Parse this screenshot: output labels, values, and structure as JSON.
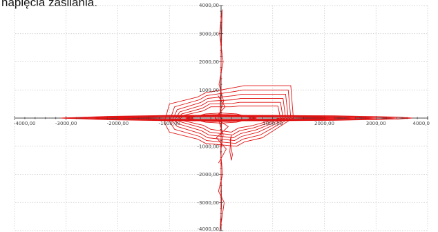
{
  "page_title": "napięcia zasilania.",
  "colors": {
    "curve": "#e01010",
    "grid": "#c8c8c8",
    "axis": "#111111"
  },
  "chart_data": {
    "type": "line",
    "title": "",
    "xlabel": "",
    "ylabel": "",
    "xlim": [
      -4000,
      4000
    ],
    "ylim": [
      -4000,
      4000
    ],
    "grid": true,
    "x_ticks": [
      -4000,
      -3000,
      -2000,
      -1000,
      0,
      1000,
      2000,
      3000,
      4000
    ],
    "y_ticks": [
      -4000,
      -3000,
      -2000,
      -1000,
      0,
      1000,
      2000,
      3000,
      4000
    ],
    "x_tick_labels": [
      "-4000,00",
      "-3000,00",
      "-2000,00",
      "-1000,00",
      "1000,00",
      "2000,00",
      "3000,00",
      "4000,0"
    ],
    "y_tick_labels": [
      "4000,00",
      "3000,00",
      "2000,00",
      "1000,00",
      "-1000,00",
      "-2000,00",
      "-3000,00",
      "-4000,00"
    ],
    "x_tick_label_values": [
      -4000,
      -3000,
      -2000,
      -1000,
      1000,
      2000,
      3000,
      4000
    ],
    "y_tick_label_values": [
      4000,
      3000,
      2000,
      1000,
      -1000,
      -2000,
      -3000,
      -4000
    ],
    "series": [
      {
        "x": [
          -3100,
          -2200,
          -1000,
          0,
          1000,
          2200,
          3400,
          3700,
          3400,
          2200,
          1000,
          0,
          -1000,
          -2200,
          -3100
        ],
        "y": [
          0,
          60,
          95,
          100,
          95,
          80,
          40,
          0,
          -40,
          -80,
          -95,
          -100,
          -95,
          -60,
          0
        ]
      },
      {
        "x": [
          -3100,
          -2200,
          -1000,
          0,
          1000,
          2200,
          3100,
          3400,
          3100,
          2200,
          1000,
          0,
          -1000,
          -2200,
          -3100
        ],
        "y": [
          0,
          45,
          80,
          85,
          80,
          65,
          30,
          0,
          -30,
          -65,
          -80,
          -85,
          -80,
          -45,
          0
        ]
      },
      {
        "x": [
          -2700,
          -1900,
          -900,
          0,
          900,
          1900,
          2700,
          3000,
          2700,
          1900,
          900,
          0,
          -900,
          -1900,
          -2700
        ],
        "y": [
          0,
          40,
          65,
          70,
          65,
          50,
          25,
          0,
          -25,
          -50,
          -65,
          -70,
          -65,
          -40,
          0
        ]
      },
      {
        "x": [
          -2400,
          -1700,
          -800,
          0,
          800,
          1700,
          2400,
          2600,
          2400,
          1700,
          800,
          0,
          -800,
          -1700,
          -2400
        ],
        "y": [
          0,
          30,
          50,
          55,
          50,
          40,
          20,
          0,
          -20,
          -40,
          -50,
          -55,
          -50,
          -30,
          0
        ]
      },
      {
        "x": [
          -2000,
          -1400,
          -700,
          0,
          700,
          1400,
          2000,
          2200,
          2000,
          1400,
          700,
          0,
          -700,
          -1400,
          -2000
        ],
        "y": [
          0,
          25,
          40,
          45,
          40,
          30,
          15,
          0,
          -15,
          -30,
          -40,
          -45,
          -40,
          -25,
          0
        ]
      },
      {
        "x": [
          -1100,
          -1000,
          -450,
          -300,
          300,
          450,
          800,
          1350,
          1400,
          1350,
          800,
          450,
          300,
          -300,
          -450,
          -1000,
          -1100
        ],
        "y": [
          -150,
          500,
          750,
          900,
          1100,
          1150,
          1150,
          1150,
          0,
          -50,
          -700,
          -850,
          -1000,
          -900,
          -750,
          -500,
          -150
        ]
      },
      {
        "x": [
          -1000,
          -900,
          -420,
          -280,
          280,
          420,
          760,
          1300,
          1350,
          1300,
          760,
          420,
          280,
          -280,
          -420,
          -900,
          -1000
        ],
        "y": [
          -120,
          400,
          650,
          800,
          950,
          1000,
          1000,
          1000,
          0,
          -40,
          -600,
          -750,
          -900,
          -800,
          -650,
          -400,
          -120
        ]
      },
      {
        "x": [
          -950,
          -850,
          -400,
          -260,
          260,
          400,
          720,
          1250,
          1300,
          1250,
          720,
          400,
          260,
          -260,
          -400,
          -850,
          -950
        ],
        "y": [
          -100,
          300,
          550,
          700,
          800,
          850,
          850,
          850,
          0,
          -35,
          -500,
          -650,
          -800,
          -700,
          -550,
          -300,
          -100
        ]
      },
      {
        "x": [
          -900,
          -800,
          -380,
          -240,
          240,
          380,
          680,
          1200,
          1250,
          1200,
          680,
          380,
          240,
          -240,
          -380,
          -800,
          -900
        ],
        "y": [
          -80,
          220,
          450,
          600,
          650,
          700,
          700,
          700,
          0,
          -30,
          -420,
          -550,
          -700,
          -600,
          -450,
          -220,
          -80
        ]
      },
      {
        "x": [
          -850,
          -760,
          -360,
          -220,
          220,
          360,
          640,
          1150,
          1200,
          1150,
          640,
          360,
          220,
          -220,
          -360,
          -760,
          -850
        ],
        "y": [
          -60,
          150,
          350,
          500,
          520,
          560,
          560,
          560,
          0,
          -25,
          -340,
          -450,
          -600,
          -500,
          -350,
          -150,
          -60
        ]
      },
      {
        "x": [
          -800,
          -720,
          -340,
          -200,
          200,
          340,
          600,
          1100,
          1150,
          1100,
          600,
          340,
          200,
          -200,
          -340,
          -720,
          -800
        ],
        "y": [
          -40,
          100,
          260,
          400,
          400,
          430,
          430,
          430,
          0,
          -20,
          -270,
          -350,
          -500,
          -400,
          -260,
          -100,
          -40
        ]
      },
      {
        "x": [
          -600,
          -300,
          0,
          300,
          600,
          300,
          0,
          -300,
          -600
        ],
        "y": [
          0,
          150,
          180,
          150,
          0,
          -150,
          -180,
          -150,
          0
        ]
      },
      {
        "x": [
          -700,
          -350,
          0,
          350,
          700,
          350,
          0,
          -350,
          -700
        ],
        "y": [
          0,
          110,
          130,
          110,
          0,
          -110,
          -130,
          -110,
          0
        ]
      },
      {
        "x": [
          -20,
          20,
          -30,
          40,
          -40,
          50,
          -60,
          40,
          -10,
          30,
          -50,
          60,
          -20,
          10,
          -5,
          15
        ],
        "y": [
          0,
          3850,
          3000,
          2000,
          1200,
          600,
          0,
          -600,
          -1200,
          -2000,
          -2600,
          -3000,
          -4000,
          -3100,
          -1000,
          0
        ]
      },
      {
        "x": [
          200,
          180,
          170,
          200,
          220,
          190,
          175,
          200
        ],
        "y": [
          -600,
          -900,
          -1200,
          -1500,
          -1300,
          -1000,
          -800,
          -600
        ]
      },
      {
        "x": [
          -60,
          80,
          -120,
          140,
          -90,
          100,
          -50
        ],
        "y": [
          800,
          400,
          0,
          -300,
          -700,
          -1100,
          -1600
        ]
      }
    ]
  }
}
